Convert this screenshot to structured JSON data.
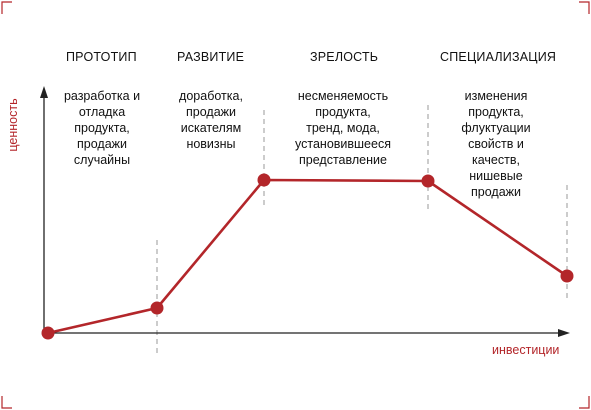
{
  "colors": {
    "accent": "#b3262a",
    "axis": "#222222",
    "divider": "#9a9a9a"
  },
  "axes": {
    "y_label": "ценность",
    "x_label": "инвестиции"
  },
  "phases": [
    {
      "title": "ПРОТОТИП",
      "description": [
        "разработка и",
        "отладка",
        "продукта,",
        "продажи",
        "случайны"
      ]
    },
    {
      "title": "РАЗВИТИЕ",
      "description": [
        "доработка,",
        "продажи",
        "искателям",
        "новизны"
      ]
    },
    {
      "title": "ЗРЕЛОСТЬ",
      "description": [
        "несменяемость",
        "продукта,",
        "тренд, мода,",
        "установившееся",
        "представление"
      ]
    },
    {
      "title": "СПЕЦИАЛИЗАЦИЯ",
      "description": [
        "изменения",
        "продукта,",
        "флуктуации",
        "свойств и",
        "качеств,",
        "нишевые",
        "продажи"
      ]
    }
  ]
}
